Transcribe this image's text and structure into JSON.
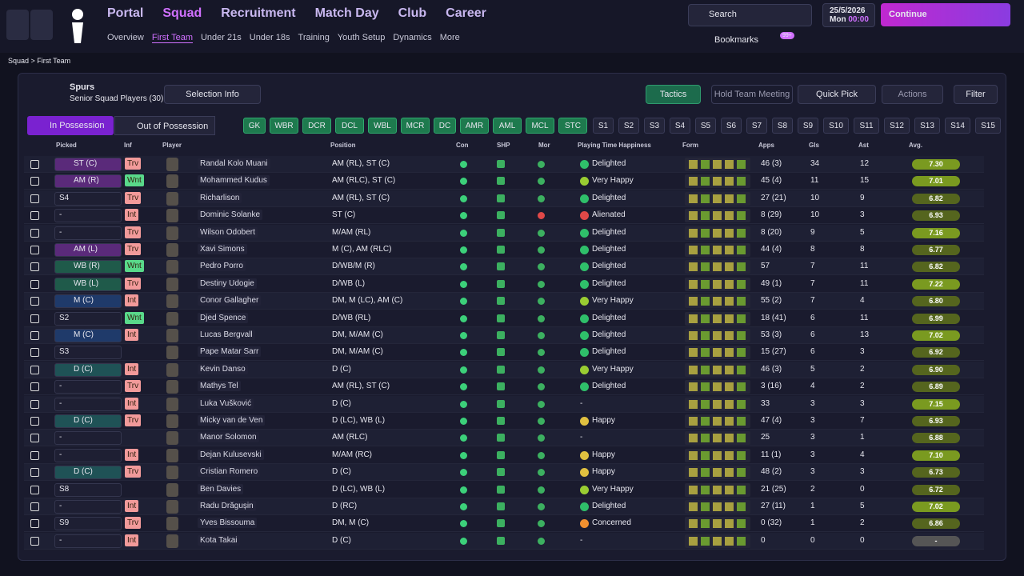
{
  "nav": {
    "main": [
      "Portal",
      "Squad",
      "Recruitment",
      "Match Day",
      "Club",
      "Career"
    ],
    "sub": [
      "Overview",
      "First Team",
      "Under 21s",
      "Under 18s",
      "Training",
      "Youth Setup",
      "Dynamics",
      "More"
    ]
  },
  "top": {
    "search": "Search",
    "date": "25/5/2026",
    "day": "Mon",
    "time": "00:00",
    "continue": "Continue",
    "bookmarks": "Bookmarks",
    "badge": "99+"
  },
  "breadcrumb": [
    "Squad",
    "First Team"
  ],
  "panel": {
    "team": "Spurs",
    "subtitle": "Senior Squad Players (30)",
    "selection_info": "Selection Info",
    "tactics": "Tactics",
    "meeting": "Hold Team Meeting",
    "quick_pick": "Quick Pick",
    "actions": "Actions",
    "filter": "Filter",
    "tabs": [
      "In Possession",
      "Out of Possession"
    ]
  },
  "positions": [
    "GK",
    "WBR",
    "DCR",
    "DCL",
    "WBL",
    "MCR",
    "DC",
    "AMR",
    "AML",
    "MCL",
    "STC"
  ],
  "subs": [
    "S1",
    "S2",
    "S3",
    "S4",
    "S5",
    "S6",
    "S7",
    "S8",
    "S9",
    "S10",
    "S11",
    "S12",
    "S13",
    "S14",
    "S15"
  ],
  "table": {
    "columns": [
      "Picked",
      "Inf",
      "Player",
      "Position",
      "Con",
      "SHP",
      "Mor",
      "Playing Time Happiness",
      "Form",
      "Apps",
      "Gls",
      "Ast",
      "Avg."
    ],
    "rows": [
      [
        "ST (C)",
        "Trv",
        "Randal Kolo Muani",
        "AM (RL), ST (C)",
        "Delighted",
        "46 (3)",
        34,
        12,
        "7.30"
      ],
      [
        "AM (R)",
        "Wnt",
        "Mohammed Kudus",
        "AM (RLC), ST (C)",
        "Very Happy",
        "45 (4)",
        11,
        15,
        "7.01"
      ],
      [
        "S4",
        "Trv",
        "Richarlison",
        "AM (RL), ST (C)",
        "Delighted",
        "27 (21)",
        10,
        9,
        "6.82"
      ],
      [
        "-",
        "Int",
        "Dominic Solanke",
        "ST (C)",
        "Alienated",
        "8 (29)",
        10,
        3,
        "6.93"
      ],
      [
        "-",
        "Trv",
        "Wilson Odobert",
        "M/AM (RL)",
        "Delighted",
        "8 (20)",
        9,
        5,
        "7.16"
      ],
      [
        "AM (L)",
        "Trv",
        "Xavi Simons",
        "M (C), AM (RLC)",
        "Delighted",
        "44 (4)",
        8,
        8,
        "6.77"
      ],
      [
        "WB (R)",
        "Wnt",
        "Pedro Porro",
        "D/WB/M (R)",
        "Delighted",
        "57",
        7,
        11,
        "6.82"
      ],
      [
        "WB (L)",
        "Trv",
        "Destiny Udogie",
        "D/WB (L)",
        "Delighted",
        "49 (1)",
        7,
        11,
        "7.22"
      ],
      [
        "M (C)",
        "Int",
        "Conor Gallagher",
        "DM, M (LC), AM (C)",
        "Very Happy",
        "55 (2)",
        7,
        4,
        "6.80"
      ],
      [
        "S2",
        "Wnt",
        "Djed Spence",
        "D/WB (RL)",
        "Delighted",
        "18 (41)",
        6,
        11,
        "6.99"
      ],
      [
        "M (C)",
        "Int",
        "Lucas Bergvall",
        "DM, M/AM (C)",
        "Delighted",
        "53 (3)",
        6,
        13,
        "7.02"
      ],
      [
        "S3",
        null,
        "Pape Matar Sarr",
        "DM, M/AM (C)",
        "Delighted",
        "15 (27)",
        6,
        3,
        "6.92"
      ],
      [
        "D (C)",
        "Int",
        "Kevin Danso",
        "D (C)",
        "Very Happy",
        "46 (3)",
        5,
        2,
        "6.90"
      ],
      [
        "-",
        "Trv",
        "Mathys Tel",
        "AM (RL), ST (C)",
        "Delighted",
        "3 (16)",
        4,
        2,
        "6.89"
      ],
      [
        "-",
        "Int",
        "Luka Vušković",
        "D (C)",
        "-",
        "33",
        3,
        3,
        "7.15"
      ],
      [
        "D (C)",
        "Trv",
        "Micky van de Ven",
        "D (LC), WB (L)",
        "Happy",
        "47 (4)",
        3,
        7,
        "6.93"
      ],
      [
        "-",
        null,
        "Manor Solomon",
        "AM (RLC)",
        "-",
        "25",
        3,
        1,
        "6.88"
      ],
      [
        "-",
        "Int",
        "Dejan Kulusevski",
        "M/AM (RC)",
        "Happy",
        "11 (1)",
        3,
        4,
        "7.10"
      ],
      [
        "D (C)",
        "Trv",
        "Cristian Romero",
        "D (C)",
        "Happy",
        "48 (2)",
        3,
        3,
        "6.73"
      ],
      [
        "S8",
        null,
        "Ben Davies",
        "D (LC), WB (L)",
        "Very Happy",
        "21 (25)",
        2,
        0,
        "6.72"
      ],
      [
        "-",
        "Int",
        "Radu Drăgușin",
        "D (RC)",
        "Delighted",
        "27 (11)",
        1,
        5,
        "7.02"
      ],
      [
        "S9",
        "Trv",
        "Yves Bissouma",
        "DM, M (C)",
        "Concerned",
        "0 (32)",
        1,
        2,
        "6.86"
      ],
      [
        "-",
        "Int",
        "Kota Takai",
        "D (C)",
        "-",
        "0",
        0,
        0,
        "-"
      ]
    ]
  }
}
